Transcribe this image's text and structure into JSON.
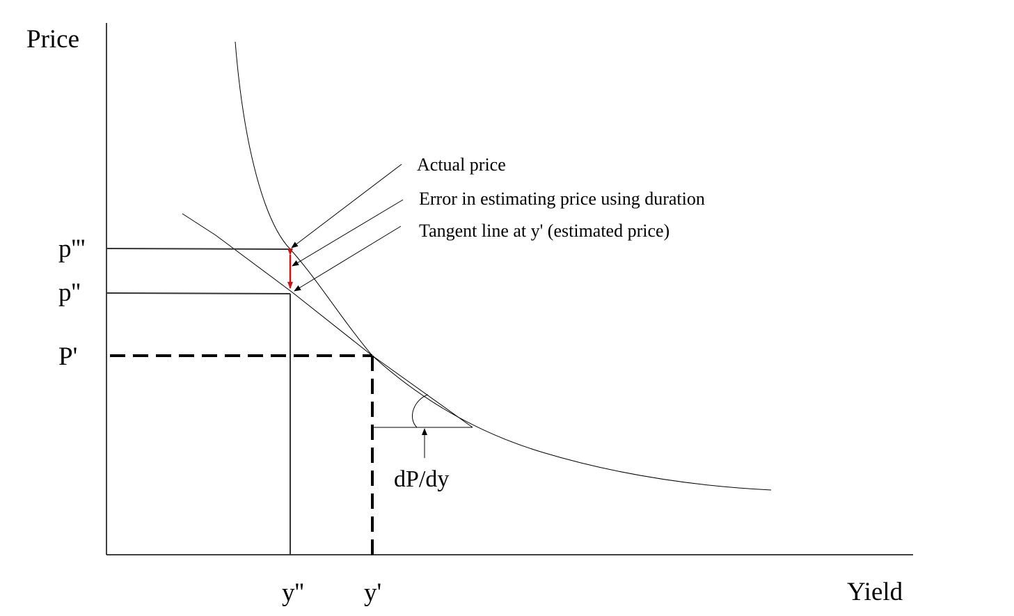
{
  "axes": {
    "y_label": "Price",
    "x_label": "Yield"
  },
  "price_labels": {
    "p_triple": "p'''",
    "p_double": "p''",
    "p_prime": "P'"
  },
  "yield_labels": {
    "y_double": "y''",
    "y_prime": "y'"
  },
  "annotations": {
    "actual_price": "Actual price",
    "error": "Error in estimating price using duration",
    "tangent": "Tangent line at y' (estimated price)",
    "slope": "dP/dy"
  },
  "colors": {
    "curve": "#000000",
    "error_arrow": "#cc1111"
  }
}
